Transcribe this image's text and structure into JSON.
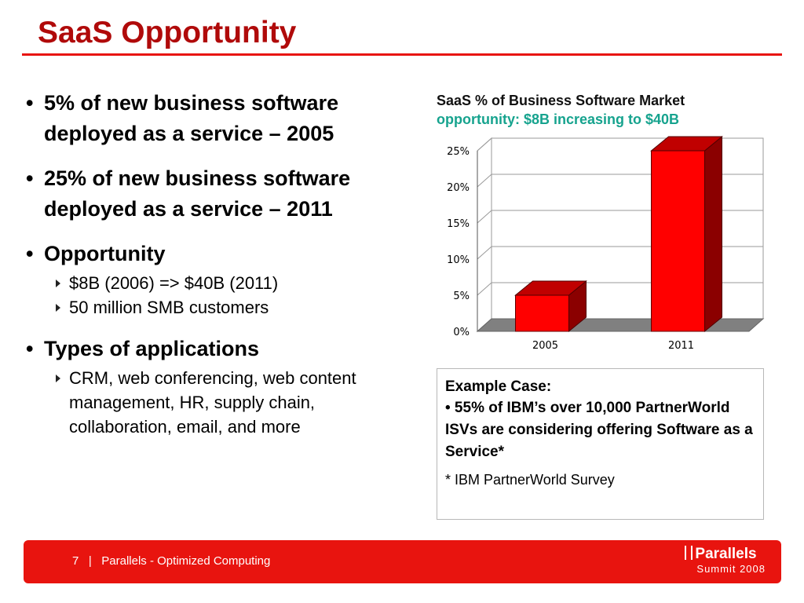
{
  "slide": {
    "title": "SaaS Opportunity"
  },
  "bullets": [
    {
      "text": "5% of new business software deployed as a service – 2005"
    },
    {
      "text": "25% of new business software deployed as a service – 2011"
    },
    {
      "text": "Opportunity",
      "sub": [
        "$8B (2006) => $40B (2011)",
        "50 million SMB customers"
      ]
    },
    {
      "text": "Types of applications",
      "sub": [
        "CRM, web conferencing, web content management, HR, supply chain, collaboration, email, and more"
      ]
    }
  ],
  "bullet_glyph": "•",
  "chart_header": {
    "line1": "SaaS % of Business Software Market",
    "line2": "opportunity: $8B increasing to $40B"
  },
  "chart_data": {
    "type": "bar",
    "categories": [
      "2005",
      "2011"
    ],
    "values": [
      5,
      25
    ],
    "ylim": [
      0,
      25
    ],
    "yticks": [
      "0%",
      "5%",
      "10%",
      "15%",
      "20%",
      "25%"
    ],
    "grid": true,
    "bar_color": "#ff0000",
    "bar_side_color": "#8b0000"
  },
  "example_case": {
    "heading": "Example Case:",
    "body": "• 55% of IBM’s over 10,000 PartnerWorld ISVs are considering offering Software as a Service*",
    "note": "* IBM PartnerWorld Survey"
  },
  "footer": {
    "page_number": "7",
    "separator": "|",
    "text": "Parallels - Optimized Computing",
    "logo_name": "Parallels",
    "logo_sub": "Summit 2008"
  },
  "colors": {
    "title": "#b00a0a",
    "accent": "#e8140f",
    "teal": "#16a38e"
  }
}
